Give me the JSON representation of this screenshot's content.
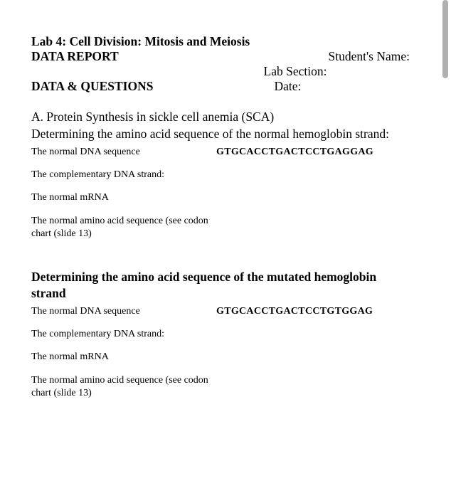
{
  "header": {
    "title": "Lab 4:  Cell Division:  Mitosis and Meiosis",
    "report_label": "DATA REPORT",
    "student_name_label": "Student's Name:",
    "lab_section_label": "Lab Section:",
    "data_questions_label": "DATA & QUESTIONS",
    "date_label": "Date:"
  },
  "sectionA": {
    "heading": "A.  Protein Synthesis in sickle cell anemia (SCA)",
    "sub1": {
      "title": "Determining the amino acid sequence of the normal hemoglobin strand:",
      "rows": {
        "dna_label": "The normal DNA sequence",
        "dna_seq": "GTGCACCTGACTCCTGAGGAG",
        "comp_label": "The complementary DNA strand:",
        "mrna_label": "The normal mRNA",
        "amino_label": "The normal amino acid sequence (see codon chart (slide 13)"
      }
    },
    "sub2": {
      "title": "Determining the amino acid sequence of the mutated hemoglobin strand",
      "rows": {
        "dna_label": "The normal DNA sequence",
        "dna_seq": "GTGCACCTGACTCCTGTGGAG",
        "comp_label": "The complementary DNA strand:",
        "mrna_label": "The normal mRNA",
        "amino_label": "The normal amino acid sequence (see codon chart (slide 13)"
      }
    }
  }
}
